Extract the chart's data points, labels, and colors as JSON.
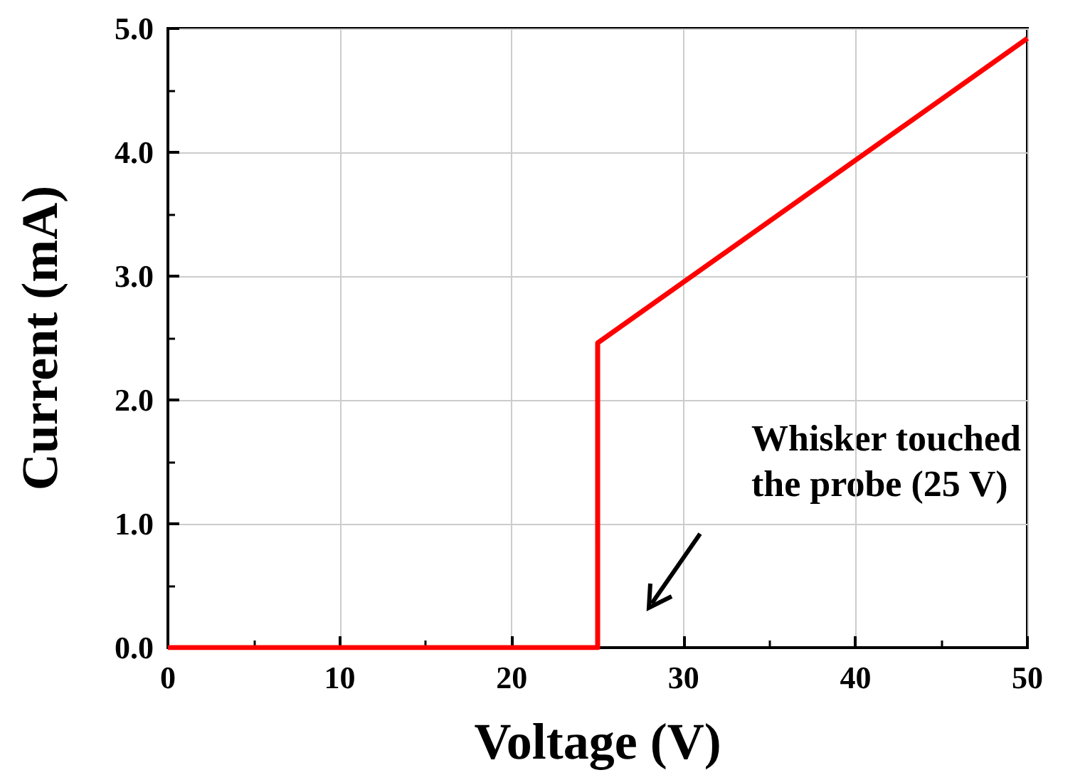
{
  "chart_data": {
    "type": "line",
    "xlabel": "Voltage (V)",
    "ylabel": "Current (mA)",
    "x": [
      0,
      25,
      25,
      50
    ],
    "series": [
      {
        "color": "#ff0000",
        "values": [
          0,
          0,
          2.46,
          4.92
        ]
      }
    ],
    "xlim": [
      0,
      50
    ],
    "xticks": [
      0,
      10,
      20,
      30,
      40,
      50
    ],
    "ylim": [
      0,
      5
    ],
    "yticks": [
      {
        "value": 0,
        "label": "0.0"
      },
      {
        "value": 1,
        "label": "1.0"
      },
      {
        "value": 2,
        "label": "2.0"
      },
      {
        "value": 3,
        "label": "3.0"
      },
      {
        "value": 4,
        "label": "4.0"
      },
      {
        "value": 5,
        "label": "5.0"
      }
    ],
    "grid": true,
    "marker": "none",
    "line_style": "solid",
    "annotations": [
      "Whisker touched\nthe probe (25 V)"
    ]
  }
}
